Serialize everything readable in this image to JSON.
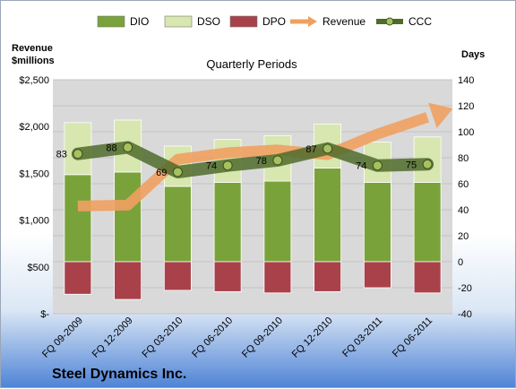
{
  "chart_data": {
    "type": "bar",
    "title": "Quarterly Periods",
    "company": "Steel Dynamics Inc.",
    "left_axis_title": [
      "Revenue",
      "$millions"
    ],
    "right_axis_title": "Days",
    "categories": [
      "FQ 09-2009",
      "FQ 12-2009",
      "FQ 03-2010",
      "FQ 06-2010",
      "FQ 09-2010",
      "FQ 12-2010",
      "FQ 03-2011",
      "FQ 06-2011"
    ],
    "left_ticks": [
      "$-",
      "$500",
      "$1,000",
      "$1,500",
      "$2,000",
      "$2,500"
    ],
    "left_ylim": [
      0,
      2500
    ],
    "right_ticks": [
      "-40",
      "-20",
      "0",
      "20",
      "40",
      "60",
      "80",
      "100",
      "120",
      "140"
    ],
    "right_ylim": [
      -40,
      140
    ],
    "legend": [
      "DIO",
      "DSO",
      "DPO",
      "Revenue",
      "CCC"
    ],
    "legend_position": "top",
    "colors": {
      "DIO": "#7aa23a",
      "DSO": "#d8e6b0",
      "DPO": "#a8414a",
      "Revenue": "#f0a060",
      "CCC": "#4f6b2a",
      "plot_bg": "#d9d9d9"
    },
    "series": [
      {
        "name": "DIO",
        "axis": "right",
        "values": [
          67,
          69,
          58,
          61,
          62,
          72,
          61,
          61
        ]
      },
      {
        "name": "DSO",
        "axis": "right",
        "values": [
          40,
          40,
          31,
          33,
          35,
          34,
          31,
          35
        ]
      },
      {
        "name": "DPO",
        "axis": "right",
        "values": [
          -25,
          -29,
          -22,
          -23,
          -24,
          -23,
          -20,
          -24
        ]
      },
      {
        "name": "Revenue",
        "axis": "left",
        "values": [
          1150,
          1160,
          1650,
          1720,
          1750,
          1700,
          1920,
          2100
        ],
        "arrow": true
      },
      {
        "name": "CCC",
        "axis": "right",
        "values": [
          83,
          88,
          69,
          74,
          78,
          87,
          74,
          75
        ],
        "labels": [
          "83",
          "88",
          "69",
          "74",
          "78",
          "87",
          "74",
          "75"
        ]
      }
    ]
  }
}
